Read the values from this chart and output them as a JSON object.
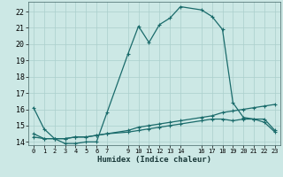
{
  "title": "",
  "xlabel": "Humidex (Indice chaleur)",
  "ylabel": "",
  "bg_color": "#cce8e5",
  "grid_color": "#aacfcc",
  "line_color": "#1a6b6b",
  "xlim": [
    -0.5,
    23.5
  ],
  "ylim": [
    13.8,
    22.6
  ],
  "yticks": [
    14,
    15,
    16,
    17,
    18,
    19,
    20,
    21,
    22
  ],
  "xticks": [
    0,
    1,
    2,
    3,
    4,
    5,
    6,
    7,
    9,
    10,
    11,
    12,
    13,
    14,
    16,
    17,
    18,
    19,
    20,
    21,
    22,
    23
  ],
  "series1": {
    "x": [
      0,
      1,
      2,
      3,
      4,
      5,
      6,
      7,
      9,
      10,
      11,
      12,
      13,
      14,
      16,
      17,
      18,
      19,
      20,
      21,
      22,
      23
    ],
    "y": [
      16.1,
      14.8,
      14.2,
      13.9,
      13.9,
      14.0,
      14.0,
      15.8,
      19.4,
      21.1,
      20.1,
      21.2,
      21.6,
      22.3,
      22.1,
      21.7,
      20.9,
      16.4,
      15.5,
      15.4,
      15.4,
      14.7
    ]
  },
  "series2": {
    "x": [
      0,
      1,
      2,
      3,
      4,
      5,
      6,
      7,
      9,
      10,
      11,
      12,
      13,
      14,
      16,
      17,
      18,
      19,
      20,
      21,
      22,
      23
    ],
    "y": [
      14.5,
      14.2,
      14.2,
      14.2,
      14.3,
      14.3,
      14.4,
      14.5,
      14.7,
      14.9,
      15.0,
      15.1,
      15.2,
      15.3,
      15.5,
      15.6,
      15.8,
      15.9,
      16.0,
      16.1,
      16.2,
      16.3
    ]
  },
  "series3": {
    "x": [
      0,
      1,
      2,
      3,
      4,
      5,
      6,
      7,
      9,
      10,
      11,
      12,
      13,
      14,
      16,
      17,
      18,
      19,
      20,
      21,
      22,
      23
    ],
    "y": [
      14.3,
      14.2,
      14.2,
      14.2,
      14.3,
      14.3,
      14.4,
      14.5,
      14.6,
      14.7,
      14.8,
      14.9,
      15.0,
      15.1,
      15.3,
      15.4,
      15.4,
      15.3,
      15.4,
      15.4,
      15.2,
      14.6
    ]
  }
}
